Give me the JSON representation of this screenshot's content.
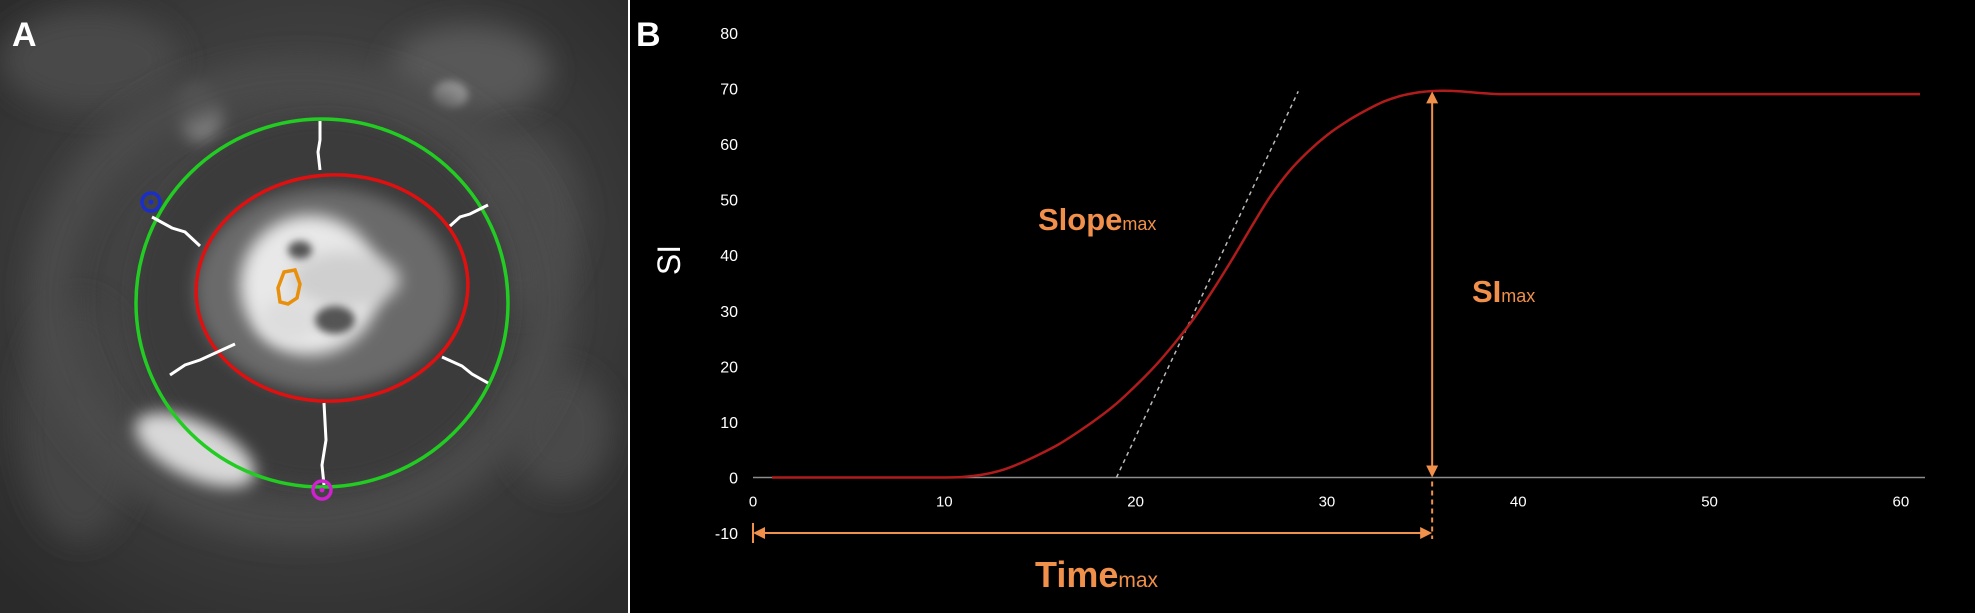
{
  "panels": {
    "a": {
      "label": "A"
    },
    "b": {
      "label": "B"
    }
  },
  "colors": {
    "curve": "#b01c1c",
    "annotation": "#f0904a",
    "tangent": "#bbbbbb",
    "epicardium": "#22cc22",
    "endocardium": "#e01010",
    "blood_pool_roi": "#e8900c",
    "segment_lines": "#ffffff",
    "anterior_marker": "#1a2ec8",
    "inferior_marker": "#d020d0"
  },
  "chart_data": {
    "type": "line",
    "title": "",
    "xlabel": "",
    "ylabel": "SI",
    "xlim": [
      0,
      61
    ],
    "ylim": [
      -10,
      80
    ],
    "x_ticks": [
      "0",
      "10",
      "20",
      "30",
      "40",
      "50",
      "60"
    ],
    "y_ticks": [
      "80",
      "70",
      "60",
      "50",
      "40",
      "30",
      "20",
      "10",
      "0",
      "-10"
    ],
    "grid": false,
    "series": [
      {
        "x": [
          1,
          5,
          10,
          11,
          12,
          13,
          14,
          15,
          16,
          17,
          18,
          19,
          20,
          21,
          22,
          23,
          24,
          25,
          26,
          27,
          28,
          29,
          30,
          31,
          32,
          33,
          34,
          35,
          36,
          37,
          38,
          39,
          40,
          45,
          50,
          55,
          60,
          61
        ],
        "y": [
          0,
          0,
          0,
          0.1,
          0.5,
          1.3,
          2.6,
          4.2,
          6.0,
          8.2,
          10.6,
          13.3,
          16.5,
          20.0,
          24.0,
          28.4,
          33.5,
          39.0,
          44.8,
          50.4,
          55.0,
          58.6,
          61.6,
          64.0,
          66.0,
          67.7,
          68.8,
          69.4,
          69.6,
          69.5,
          69.2,
          69.0,
          69.0,
          69.0,
          69.0,
          69.0,
          69.0,
          69.0
        ]
      }
    ],
    "annotations": {
      "slope": {
        "main": "Slope",
        "sub": "max",
        "tangent_x": [
          19,
          28.5
        ],
        "tangent_y": [
          0,
          69.5
        ]
      },
      "si_max": {
        "main": "SI",
        "sub": "max",
        "x": 35.5,
        "y": [
          0,
          69.5
        ]
      },
      "time_max": {
        "main": "Time",
        "sub": "max",
        "x": [
          0,
          35.5
        ],
        "y": -10
      }
    }
  }
}
